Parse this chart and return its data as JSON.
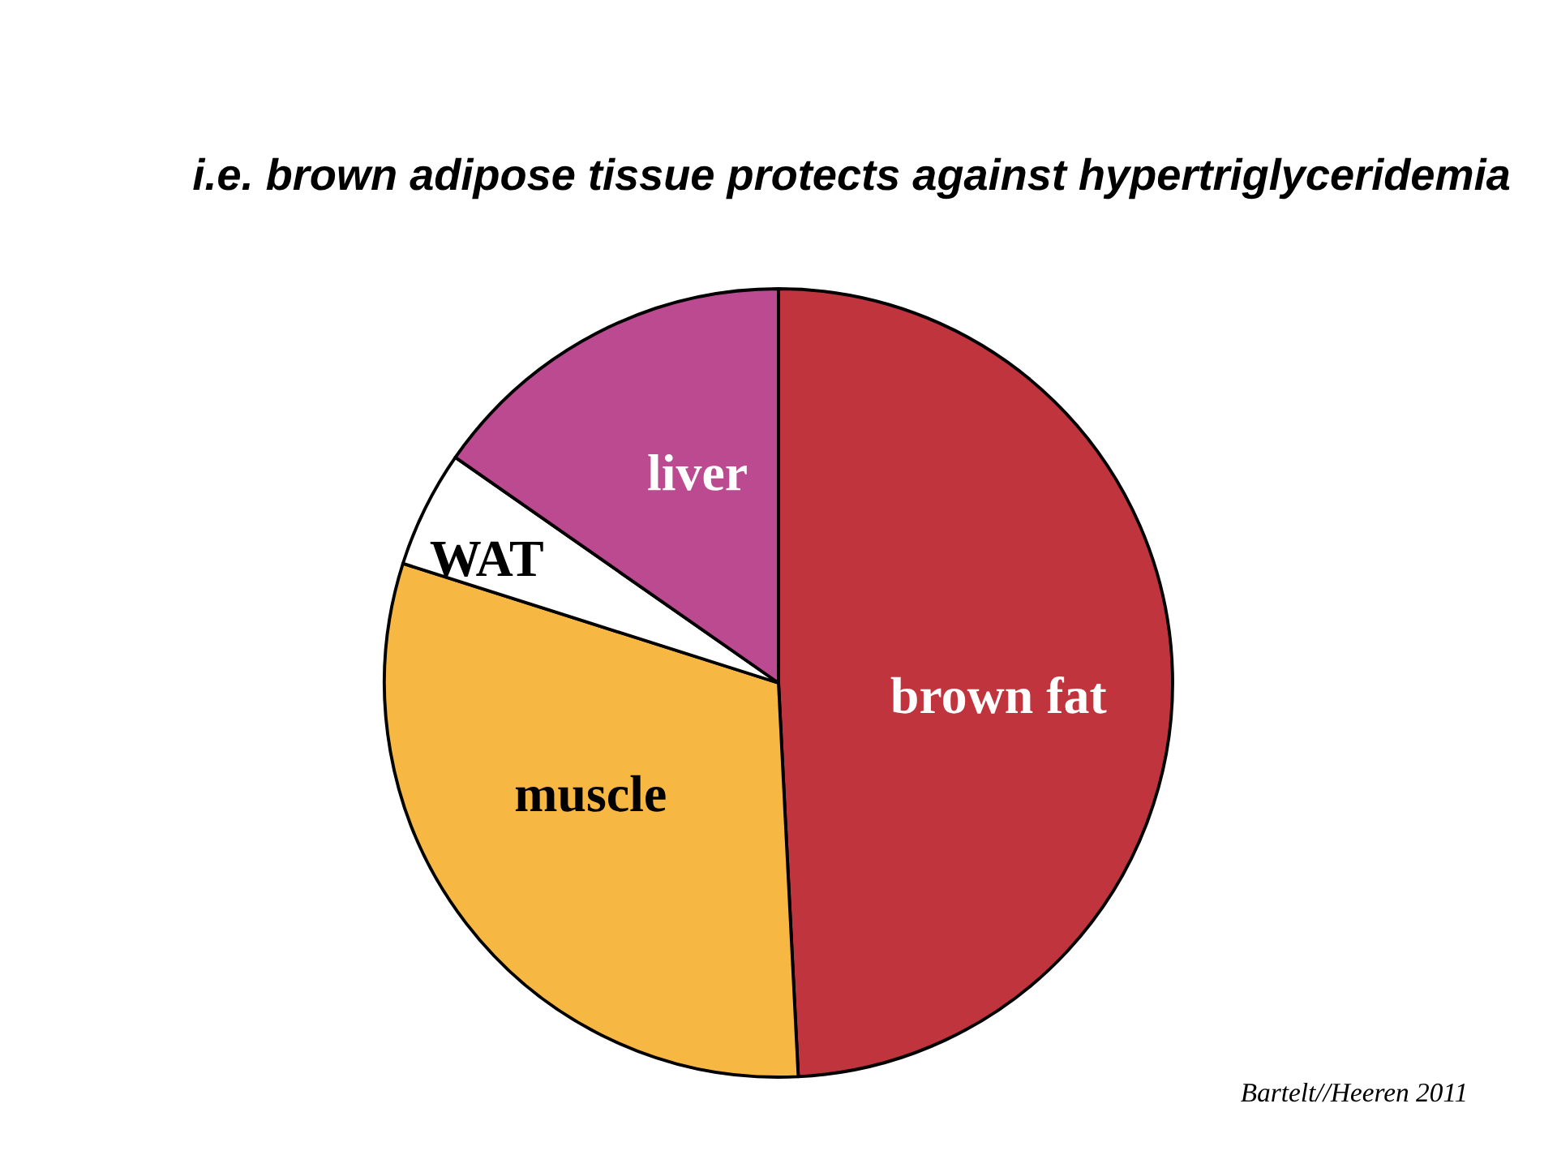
{
  "chart_data": {
    "type": "pie",
    "title": "i.e. brown adipose tissue protects against hypertriglyceridemia",
    "categories": [
      "brown fat",
      "muscle",
      "WAT",
      "liver"
    ],
    "values": [
      49.2,
      30.7,
      4.8,
      15.3
    ],
    "colors": [
      "#c0343e",
      "#f7b843",
      "#ffffff",
      "#bb4a90"
    ],
    "annotations": [
      "Bartelt//Heeren 2011"
    ]
  }
}
